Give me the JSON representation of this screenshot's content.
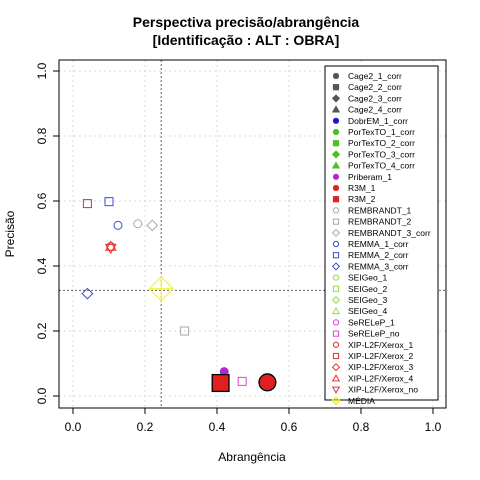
{
  "chart_data": {
    "type": "scatter",
    "title": "Perspectiva precisão/abrangência",
    "subtitle": "[Identificação : ALT : OBRA]",
    "xlabel": "Abrangência",
    "ylabel": "Precisão",
    "xlim": [
      0,
      1
    ],
    "ylim": [
      0,
      1
    ],
    "xticks": [
      "0.0",
      "0.2",
      "0.4",
      "0.6",
      "0.8",
      "1.0"
    ],
    "yticks": [
      "0.0",
      "0.2",
      "0.4",
      "0.6",
      "0.8",
      "1.0"
    ],
    "grid": true,
    "legend_position": "top-right",
    "reference_lines": {
      "x": 0.245,
      "y": 0.325
    },
    "series": [
      {
        "name": "Cage2_1_corr",
        "shape": "circle",
        "color": "#555555",
        "filled": true,
        "points": []
      },
      {
        "name": "Cage2_2_corr",
        "shape": "square",
        "color": "#555555",
        "filled": true,
        "points": []
      },
      {
        "name": "Cage2_3_corr",
        "shape": "diamond",
        "color": "#555555",
        "filled": true,
        "points": []
      },
      {
        "name": "Cage2_4_corr",
        "shape": "triangle",
        "color": "#555555",
        "filled": true,
        "points": []
      },
      {
        "name": "DobrEM_1_corr",
        "shape": "circle",
        "color": "#1a1ac8",
        "filled": true,
        "points": []
      },
      {
        "name": "PorTexTO_1_corr",
        "shape": "circle",
        "color": "#4fbf1f",
        "filled": true,
        "points": []
      },
      {
        "name": "PorTexTO_2_corr",
        "shape": "square",
        "color": "#4fbf1f",
        "filled": true,
        "points": []
      },
      {
        "name": "PorTexTO_3_corr",
        "shape": "diamond",
        "color": "#4fbf1f",
        "filled": true,
        "points": []
      },
      {
        "name": "PorTexTO_4_corr",
        "shape": "triangle",
        "color": "#4fbf1f",
        "filled": true,
        "points": []
      },
      {
        "name": "Priberam_1",
        "shape": "circle",
        "color": "#b02ad0",
        "filled": true,
        "points": [
          {
            "x": 0.42,
            "y": 0.075,
            "size": 1.0
          }
        ]
      },
      {
        "name": "R3M_1",
        "shape": "circle",
        "color": "#e02020",
        "filled": true,
        "points": [
          {
            "x": 0.54,
            "y": 0.042,
            "size": 2.1
          }
        ]
      },
      {
        "name": "R3M_2",
        "shape": "square",
        "color": "#e02020",
        "filled": true,
        "points": [
          {
            "x": 0.41,
            "y": 0.04,
            "size": 2.1
          }
        ]
      },
      {
        "name": "REMBRANDT_1",
        "shape": "circle",
        "color": "#a8a8a8",
        "filled": false,
        "points": [
          {
            "x": 0.18,
            "y": 0.53,
            "size": 1.0
          }
        ]
      },
      {
        "name": "REMBRANDT_2",
        "shape": "square",
        "color": "#a8a8a8",
        "filled": false,
        "points": [
          {
            "x": 0.31,
            "y": 0.2,
            "size": 1.0
          }
        ]
      },
      {
        "name": "REMBRANDT_3_corr",
        "shape": "diamond",
        "color": "#a8a8a8",
        "filled": false,
        "points": [
          {
            "x": 0.22,
            "y": 0.525,
            "size": 1.0
          }
        ]
      },
      {
        "name": "REMMA_1_corr",
        "shape": "circle",
        "color": "#3a4ad8",
        "filled": false,
        "points": [
          {
            "x": 0.125,
            "y": 0.525,
            "size": 1.0
          }
        ]
      },
      {
        "name": "REMMA_2_corr",
        "shape": "square",
        "color": "#3a4ad8",
        "filled": false,
        "points": [
          {
            "x": 0.1,
            "y": 0.598,
            "size": 1.0
          }
        ]
      },
      {
        "name": "REMMA_3_corr",
        "shape": "diamond",
        "color": "#3a4ad8",
        "filled": false,
        "points": [
          {
            "x": 0.04,
            "y": 0.315,
            "size": 1.0
          }
        ]
      },
      {
        "name": "SEIGeo_1",
        "shape": "circle",
        "color": "#90e040",
        "filled": false,
        "points": []
      },
      {
        "name": "SEIGeo_2",
        "shape": "square",
        "color": "#90e040",
        "filled": false,
        "points": []
      },
      {
        "name": "SEIGeo_3",
        "shape": "diamond",
        "color": "#90e040",
        "filled": false,
        "points": []
      },
      {
        "name": "SEIGeo_4",
        "shape": "triangle",
        "color": "#90e040",
        "filled": false,
        "points": []
      },
      {
        "name": "SeRELeP_1",
        "shape": "circle",
        "color": "#e040e0",
        "filled": false,
        "points": []
      },
      {
        "name": "SeRELeP_no",
        "shape": "square",
        "color": "#e040e0",
        "filled": false,
        "points": [
          {
            "x": 0.47,
            "y": 0.045,
            "size": 1.0
          }
        ]
      },
      {
        "name": "XIP-L2F/Xerox_1",
        "shape": "circle",
        "color": "#e03030",
        "filled": false,
        "points": [
          {
            "x": 0.105,
            "y": 0.46,
            "size": 1.0
          }
        ]
      },
      {
        "name": "XIP-L2F/Xerox_2",
        "shape": "square",
        "color": "#e03030",
        "filled": false,
        "points": [
          {
            "x": 0.04,
            "y": 0.592,
            "size": 1.0
          }
        ]
      },
      {
        "name": "XIP-L2F/Xerox_3",
        "shape": "diamond",
        "color": "#e03030",
        "filled": false,
        "points": []
      },
      {
        "name": "XIP-L2F/Xerox_4",
        "shape": "triangle",
        "color": "#e03030",
        "filled": false,
        "points": [
          {
            "x": 0.105,
            "y": 0.46,
            "size": 1.0
          }
        ]
      },
      {
        "name": "XIP-L2F/Xerox_no",
        "shape": "triangle-down",
        "color": "#e03030",
        "filled": false,
        "points": [
          {
            "x": 0.105,
            "y": 0.455,
            "size": 1.0
          }
        ]
      },
      {
        "name": "MÉDIA",
        "shape": "diamond-cross",
        "color": "#f2f240",
        "filled": false,
        "points": [
          {
            "x": 0.245,
            "y": 0.33,
            "size": 2.3
          }
        ]
      }
    ]
  }
}
